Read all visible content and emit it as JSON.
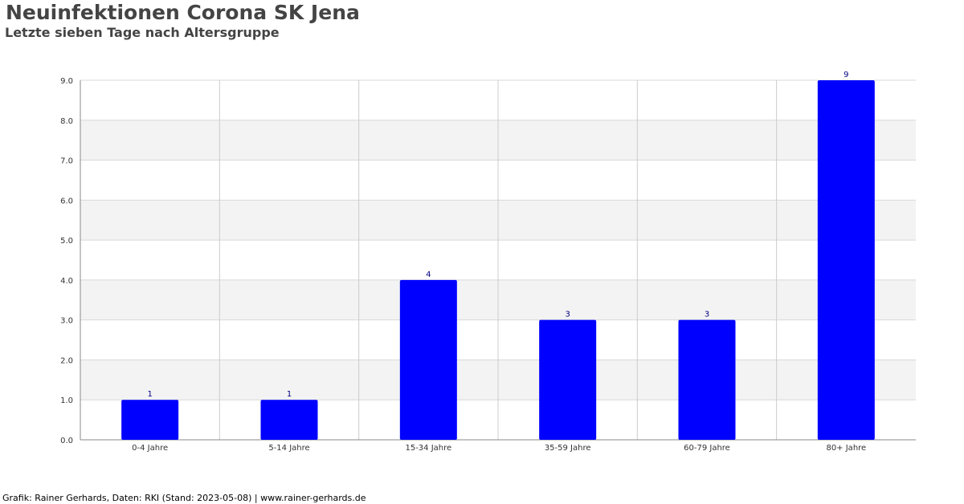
{
  "title": "Neuinfektionen Corona SK Jena",
  "subtitle": "Letzte sieben Tage nach Altersgruppe",
  "footer": "Grafik: Rainer Gerhards, Daten: RKI (Stand: 2023-05-08) | www.rainer-gerhards.de",
  "colors": {
    "bar": "#0000ff",
    "value_label": "#000080",
    "band": "#f3f3f3",
    "grid": "#d8d8d8",
    "axis": "#888888"
  },
  "chart_data": {
    "type": "bar",
    "title": "Neuinfektionen Corona SK Jena",
    "subtitle": "Letzte sieben Tage nach Altersgruppe",
    "categories": [
      "0-4 Jahre",
      "5-14 Jahre",
      "15-34 Jahre",
      "35-59 Jahre",
      "60-79 Jahre",
      "80+ Jahre"
    ],
    "values": [
      1,
      1,
      4,
      3,
      3,
      9
    ],
    "ylim": [
      0,
      9
    ],
    "yticks": [
      "0.0",
      "1.0",
      "2.0",
      "3.0",
      "4.0",
      "5.0",
      "6.0",
      "7.0",
      "8.0",
      "9.0"
    ],
    "grid": true,
    "legend": "none"
  }
}
